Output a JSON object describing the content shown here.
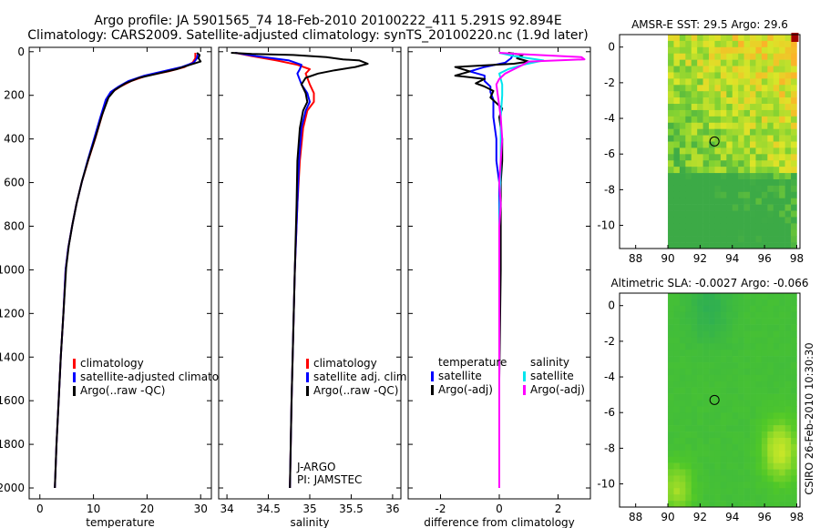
{
  "header": {
    "title_line1": "Argo profile: JA 5901565_74 18-Feb-2010 20100222_411 5.291S 92.894E",
    "title_line2": "Climatology: CARS2009. Satellite-adjusted climatology: synTS_20100220.nc (1.9d later)"
  },
  "side_label": "CSIRO 26-Feb-2010 10:30:30",
  "colors": {
    "clim": "#ff0000",
    "sat": "#0000ff",
    "argo": "#000000",
    "sal_sat": "#00e5ee",
    "sal_argo": "#ff00ff"
  },
  "chart_data": [
    {
      "id": "temperature",
      "type": "line",
      "xlabel": "temperature",
      "ylabel": "",
      "xlim": [
        -2,
        32
      ],
      "ylim": [
        2050,
        -20
      ],
      "xticks": [
        0,
        10,
        20,
        30
      ],
      "yticks": [
        0,
        200,
        400,
        600,
        800,
        1000,
        1200,
        1400,
        1600,
        1800,
        2000
      ],
      "legend": [
        "climatology",
        "satellite-adjusted climatology",
        "Argo(..raw -QC)"
      ],
      "series": [
        {
          "name": "climatology",
          "color": "clim",
          "points": [
            [
              29.0,
              5
            ],
            [
              29.0,
              30
            ],
            [
              28.5,
              50
            ],
            [
              27,
              70
            ],
            [
              24,
              90
            ],
            [
              20,
              110
            ],
            [
              17,
              135
            ],
            [
              15,
              160
            ],
            [
              13.5,
              185
            ],
            [
              12.5,
              220
            ],
            [
              11.5,
              300
            ],
            [
              10.3,
              400
            ],
            [
              9.0,
              500
            ],
            [
              7.8,
              600
            ],
            [
              6.8,
              700
            ],
            [
              6.0,
              800
            ],
            [
              5.3,
              900
            ],
            [
              4.8,
              1000
            ],
            [
              4.4,
              1200
            ],
            [
              3.9,
              1400
            ],
            [
              3.5,
              1600
            ],
            [
              3.1,
              1800
            ],
            [
              2.8,
              2000
            ]
          ]
        },
        {
          "name": "satellite-adjusted climatology",
          "color": "sat",
          "points": [
            [
              29.5,
              5
            ],
            [
              29.3,
              30
            ],
            [
              28.7,
              50
            ],
            [
              26.5,
              70
            ],
            [
              23,
              90
            ],
            [
              19.5,
              110
            ],
            [
              16.5,
              135
            ],
            [
              14.7,
              160
            ],
            [
              13.2,
              185
            ],
            [
              12.3,
              220
            ],
            [
              11.3,
              300
            ],
            [
              10.1,
              400
            ],
            [
              8.9,
              500
            ],
            [
              7.8,
              600
            ],
            [
              6.8,
              700
            ],
            [
              6.0,
              800
            ],
            [
              5.3,
              900
            ],
            [
              4.8,
              1000
            ],
            [
              4.4,
              1200
            ],
            [
              3.9,
              1400
            ],
            [
              3.5,
              1600
            ],
            [
              3.1,
              1800
            ],
            [
              2.8,
              2000
            ]
          ]
        },
        {
          "name": "Argo(..raw -QC)",
          "color": "argo",
          "points": [
            [
              29.3,
              5
            ],
            [
              29.8,
              15
            ],
            [
              29.6,
              30
            ],
            [
              30.0,
              45
            ],
            [
              28.0,
              60
            ],
            [
              25.5,
              80
            ],
            [
              22,
              100
            ],
            [
              18.5,
              120
            ],
            [
              16,
              145
            ],
            [
              14,
              175
            ],
            [
              12.8,
              210
            ],
            [
              11.6,
              290
            ],
            [
              10.4,
              390
            ],
            [
              9.1,
              490
            ],
            [
              7.9,
              590
            ],
            [
              6.9,
              690
            ],
            [
              6.1,
              790
            ],
            [
              5.4,
              890
            ],
            [
              4.9,
              990
            ],
            [
              4.4,
              1200
            ],
            [
              3.9,
              1400
            ],
            [
              3.5,
              1600
            ],
            [
              3.1,
              1800
            ],
            [
              2.8,
              2000
            ]
          ]
        }
      ]
    },
    {
      "id": "salinity",
      "type": "line",
      "xlabel": "salinity",
      "xlim": [
        33.9,
        36.1
      ],
      "ylim": [
        2050,
        -20
      ],
      "xticks": [
        34,
        34.5,
        35,
        35.5,
        36
      ],
      "xtick_labels": [
        "34",
        "34.5",
        "35",
        "35.5",
        "36"
      ],
      "legend": [
        "climatology",
        "satellite adj. clim.",
        "Argo(..raw -QC)"
      ],
      "annotation": [
        "J-ARGO",
        "PI: JAMSTEC"
      ],
      "series": [
        {
          "name": "climatology",
          "color": "clim",
          "points": [
            [
              34.1,
              5
            ],
            [
              34.3,
              20
            ],
            [
              34.6,
              40
            ],
            [
              34.85,
              60
            ],
            [
              35.0,
              80
            ],
            [
              34.95,
              100
            ],
            [
              35.0,
              150
            ],
            [
              35.05,
              190
            ],
            [
              35.05,
              230
            ],
            [
              34.97,
              270
            ],
            [
              34.92,
              350
            ],
            [
              34.88,
              500
            ],
            [
              34.85,
              700
            ],
            [
              34.82,
              1000
            ],
            [
              34.8,
              1300
            ],
            [
              34.78,
              1600
            ],
            [
              34.76,
              2000
            ]
          ]
        },
        {
          "name": "satellite adj. clim.",
          "color": "sat",
          "points": [
            [
              34.1,
              5
            ],
            [
              34.35,
              20
            ],
            [
              34.75,
              40
            ],
            [
              34.9,
              60
            ],
            [
              34.88,
              80
            ],
            [
              34.85,
              100
            ],
            [
              34.9,
              150
            ],
            [
              34.97,
              190
            ],
            [
              35.0,
              230
            ],
            [
              34.95,
              270
            ],
            [
              34.9,
              350
            ],
            [
              34.87,
              500
            ],
            [
              34.85,
              700
            ],
            [
              34.82,
              1000
            ],
            [
              34.8,
              1300
            ],
            [
              34.78,
              1600
            ],
            [
              34.76,
              2000
            ]
          ]
        },
        {
          "name": "Argo(..raw -QC)",
          "color": "argo",
          "points": [
            [
              34.05,
              5
            ],
            [
              34.3,
              10
            ],
            [
              34.8,
              15
            ],
            [
              35.2,
              25
            ],
            [
              35.4,
              35
            ],
            [
              35.6,
              40
            ],
            [
              35.7,
              55
            ],
            [
              35.55,
              70
            ],
            [
              35.3,
              85
            ],
            [
              35.1,
              100
            ],
            [
              34.95,
              120
            ],
            [
              34.9,
              150
            ],
            [
              34.95,
              190
            ],
            [
              34.97,
              230
            ],
            [
              34.92,
              270
            ],
            [
              34.88,
              350
            ],
            [
              34.85,
              500
            ],
            [
              34.84,
              700
            ],
            [
              34.82,
              1000
            ],
            [
              34.8,
              1300
            ],
            [
              34.78,
              1600
            ],
            [
              34.76,
              2000
            ]
          ]
        }
      ]
    },
    {
      "id": "difference",
      "type": "line",
      "xlabel": "difference from climatology",
      "xlim": [
        -3.1,
        3.1
      ],
      "ylim": [
        2050,
        -20
      ],
      "xticks": [
        -2,
        0,
        2
      ],
      "legend_temperature": [
        "temperature",
        "satellite",
        "Argo(-adj)"
      ],
      "legend_salinity": [
        "salinity",
        "satellite",
        "Argo(-adj)"
      ],
      "series": [
        {
          "name": "temperature satellite",
          "color": "sat",
          "points": [
            [
              0.5,
              5
            ],
            [
              0.4,
              30
            ],
            [
              0.2,
              50
            ],
            [
              -0.5,
              70
            ],
            [
              -1.0,
              90
            ],
            [
              -0.5,
              110
            ],
            [
              -0.5,
              135
            ],
            [
              -0.3,
              160
            ],
            [
              -0.3,
              185
            ],
            [
              -0.2,
              220
            ],
            [
              -0.2,
              300
            ],
            [
              -0.1,
              400
            ],
            [
              -0.1,
              500
            ],
            [
              0,
              600
            ],
            [
              0,
              800
            ],
            [
              0,
              1000
            ],
            [
              0,
              1500
            ],
            [
              0,
              2000
            ]
          ]
        },
        {
          "name": "temperature Argo(-adj)",
          "color": "argo",
          "points": [
            [
              0.3,
              5
            ],
            [
              0.8,
              15
            ],
            [
              0.6,
              30
            ],
            [
              1.0,
              45
            ],
            [
              0.5,
              55
            ],
            [
              -1.5,
              70
            ],
            [
              -1.0,
              90
            ],
            [
              -1.5,
              110
            ],
            [
              -0.5,
              125
            ],
            [
              -0.8,
              145
            ],
            [
              -0.5,
              160
            ],
            [
              -0.2,
              180
            ],
            [
              -0.3,
              210
            ],
            [
              0.1,
              260
            ],
            [
              0,
              300
            ],
            [
              0.1,
              400
            ],
            [
              0.1,
              500
            ],
            [
              0.05,
              600
            ],
            [
              0.05,
              800
            ],
            [
              0.05,
              1000
            ],
            [
              0,
              1500
            ],
            [
              0,
              2000
            ]
          ]
        },
        {
          "name": "salinity satellite",
          "color": "sal_sat",
          "points": [
            [
              0,
              5
            ],
            [
              0.5,
              20
            ],
            [
              1.5,
              40
            ],
            [
              0.8,
              60
            ],
            [
              0.3,
              80
            ],
            [
              0,
              100
            ],
            [
              0.1,
              150
            ],
            [
              0.1,
              200
            ],
            [
              0.05,
              300
            ],
            [
              0.05,
              500
            ],
            [
              0,
              800
            ],
            [
              0,
              1000
            ],
            [
              0,
              1500
            ],
            [
              0,
              2000
            ]
          ]
        },
        {
          "name": "salinity Argo(-adj)",
          "color": "sal_argo",
          "points": [
            [
              0,
              5
            ],
            [
              0.6,
              10
            ],
            [
              2.8,
              25
            ],
            [
              2.9,
              35
            ],
            [
              1.0,
              45
            ],
            [
              0.8,
              60
            ],
            [
              0.5,
              80
            ],
            [
              0.2,
              100
            ],
            [
              0,
              125
            ],
            [
              -0.1,
              150
            ],
            [
              -0.05,
              200
            ],
            [
              0.05,
              300
            ],
            [
              0.1,
              400
            ],
            [
              0.05,
              500
            ],
            [
              0,
              600
            ],
            [
              0.05,
              700
            ],
            [
              0,
              800
            ],
            [
              0,
              1000
            ],
            [
              0,
              1500
            ],
            [
              0,
              2000
            ]
          ]
        }
      ]
    },
    {
      "id": "sst_map",
      "type": "heatmap",
      "title": "AMSR-E SST: 29.5 Argo: 29.6",
      "xlim": [
        87,
        98.2
      ],
      "ylim": [
        -11.3,
        0.7
      ],
      "xticks": [
        88,
        90,
        92,
        94,
        96,
        98
      ],
      "yticks": [
        0,
        -2,
        -4,
        -6,
        -8,
        -10
      ],
      "argo_position": [
        92.894,
        -5.291
      ],
      "data_lon_range": [
        90,
        98
      ],
      "data_lat_range": [
        -11.3,
        0.7
      ]
    },
    {
      "id": "sla_map",
      "type": "heatmap",
      "title": "Altimetric SLA: -0.0027 Argo: -0.066",
      "xlim": [
        87,
        98.2
      ],
      "ylim": [
        -11.3,
        0.7
      ],
      "xticks": [
        88,
        90,
        92,
        94,
        96,
        98
      ],
      "yticks": [
        0,
        -2,
        -4,
        -6,
        -8,
        -10
      ],
      "argo_position": [
        92.894,
        -5.291
      ],
      "data_lon_range": [
        90,
        98
      ],
      "data_lat_range": [
        -11.3,
        0.7
      ]
    }
  ]
}
